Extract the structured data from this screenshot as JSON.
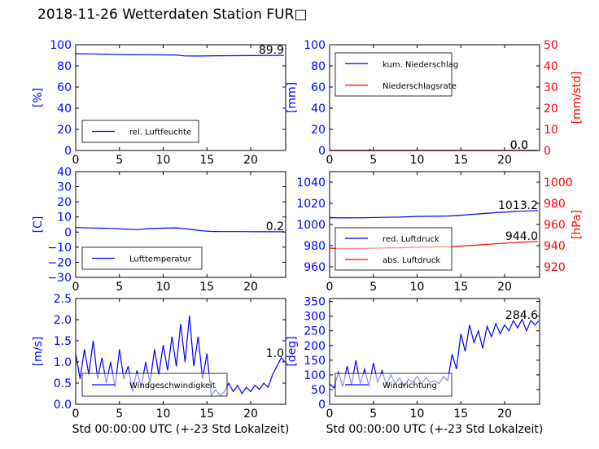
{
  "page": {
    "title": "2018-11-26 Wetterdaten Station FUR□"
  },
  "colors": {
    "blue": "#0000ff",
    "red": "#ff0000",
    "axis": "#000000"
  },
  "chart_data": [
    {
      "type": "line",
      "id": "humidity",
      "xlim": [
        0,
        24
      ],
      "ylim": [
        0,
        100
      ],
      "xticks": [
        0,
        5,
        10,
        15,
        20
      ],
      "yticks": [
        0,
        20,
        40,
        60,
        80,
        100
      ],
      "ylabel": "[%]",
      "xlabel": "",
      "legend": {
        "placement": "lower-left"
      },
      "series": [
        {
          "name": "rel. Luftfeuchte",
          "color": "#0000ff",
          "x": [
            0,
            2,
            4,
            6,
            8,
            10,
            11.5,
            12.5,
            14,
            16,
            18,
            20,
            22,
            23.8
          ],
          "y": [
            91.5,
            91.3,
            91.0,
            90.7,
            90.6,
            90.4,
            90.3,
            89.4,
            89.3,
            89.5,
            89.6,
            89.7,
            89.9,
            89.9
          ]
        }
      ],
      "last_value": "89.9"
    },
    {
      "type": "line",
      "id": "precipitation",
      "xlim": [
        0,
        24
      ],
      "ylim": [
        0,
        100
      ],
      "y2lim": [
        0,
        50
      ],
      "xticks": [
        0,
        5,
        10,
        15,
        20
      ],
      "yticks": [
        0,
        20,
        40,
        60,
        80,
        100
      ],
      "y2ticks": [
        0,
        10,
        20,
        30,
        40,
        50
      ],
      "ylabel": "[mm]",
      "y2label": "[mm/std]",
      "xlabel": "",
      "legend": {
        "placement": "upper-left"
      },
      "series": [
        {
          "name": "kum. Niederschlag",
          "color": "#0000ff",
          "axis": "left",
          "x": [
            0,
            5,
            10,
            15,
            20,
            23.8
          ],
          "y": [
            0,
            0,
            0,
            0,
            0,
            0
          ]
        },
        {
          "name": "Niederschlagsrate",
          "color": "#ff0000",
          "axis": "right",
          "x": [
            0,
            4.5,
            4.6,
            4.7,
            5,
            10,
            15,
            20,
            23.8
          ],
          "y": [
            0,
            0,
            0.6,
            0,
            0,
            0,
            0,
            0,
            0
          ]
        }
      ],
      "last_values": [
        "0.0",
        "0.0"
      ]
    },
    {
      "type": "line",
      "id": "temperature",
      "xlim": [
        0,
        24
      ],
      "ylim": [
        -30,
        40
      ],
      "xticks": [
        0,
        5,
        10,
        15,
        20
      ],
      "yticks": [
        -30,
        -20,
        -10,
        0,
        10,
        20,
        30,
        40
      ],
      "ylabel": "[C]",
      "xlabel": "",
      "legend": {
        "placement": "lower-left"
      },
      "series": [
        {
          "name": "Lufttemperatur",
          "color": "#0000ff",
          "x": [
            0,
            2,
            4,
            5.5,
            7,
            8.5,
            10,
            11.5,
            12.5,
            13.5,
            14.5,
            15.5,
            17,
            19,
            21,
            23.8
          ],
          "y": [
            3.0,
            2.7,
            2.4,
            2.0,
            1.6,
            2.3,
            2.6,
            2.8,
            2.2,
            1.5,
            0.8,
            0.4,
            0.3,
            0.3,
            0.2,
            0.2
          ]
        }
      ],
      "last_value": "0.2"
    },
    {
      "type": "line",
      "id": "pressure",
      "xlim": [
        0,
        24
      ],
      "ylim": [
        950,
        1050
      ],
      "y2lim": [
        910,
        1010
      ],
      "xticks": [
        0,
        5,
        10,
        15,
        20
      ],
      "yticks": [
        960,
        980,
        1000,
        1020,
        1040
      ],
      "y2ticks": [
        920,
        940,
        960,
        980,
        1000
      ],
      "ylabel": "",
      "y2label": "[hPa]",
      "xlabel": "",
      "legend": {
        "placement": "lower-left"
      },
      "series": [
        {
          "name": "red. Luftdruck",
          "color": "#0000ff",
          "axis": "left",
          "x": [
            0,
            2,
            4,
            6,
            8,
            10,
            12,
            13.5,
            15,
            17,
            19,
            21,
            23.8
          ],
          "y": [
            1006.5,
            1006.2,
            1006.4,
            1006.8,
            1007.0,
            1007.6,
            1007.8,
            1008.0,
            1008.8,
            1010.0,
            1011.2,
            1012.2,
            1013.2
          ]
        },
        {
          "name": "abs. Luftdruck",
          "color": "#ff0000",
          "axis": "right",
          "x": [
            0,
            2,
            4,
            6,
            8,
            10,
            12,
            13.5,
            15,
            17,
            19,
            21,
            23.8
          ],
          "y": [
            937.6,
            937.3,
            937.4,
            937.8,
            938.0,
            938.5,
            938.7,
            938.9,
            939.6,
            940.7,
            941.8,
            942.9,
            944.0
          ]
        }
      ],
      "last_values": [
        "1013.2",
        "944.0"
      ]
    },
    {
      "type": "line",
      "id": "windspeed",
      "xlim": [
        0,
        24
      ],
      "ylim": [
        0,
        2.5
      ],
      "xticks": [
        0,
        5,
        10,
        15,
        20
      ],
      "yticks": [
        0.0,
        0.5,
        1.0,
        1.5,
        2.0,
        2.5
      ],
      "ylabel": "[m/s]",
      "xlabel": "Std 00:00:00 UTC (+-23 Std Lokalzeit)",
      "legend": {
        "placement": "lower-left"
      },
      "series": [
        {
          "name": "Windgeschwindigkeit",
          "color": "#0000ff",
          "x": [
            0,
            0.5,
            1,
            1.5,
            2,
            2.5,
            3,
            3.5,
            4,
            4.5,
            5,
            5.5,
            6,
            6.5,
            7,
            7.5,
            8,
            8.5,
            9,
            9.5,
            10,
            10.5,
            11,
            11.5,
            12,
            12.5,
            13,
            13.5,
            14,
            14.5,
            15,
            15.5,
            16,
            16.5,
            17,
            17.5,
            18,
            18.5,
            19,
            19.5,
            20,
            20.5,
            21,
            21.5,
            22,
            22.5,
            23,
            23.5,
            23.9
          ],
          "y": [
            1.2,
            0.6,
            1.3,
            0.7,
            1.5,
            0.6,
            1.1,
            0.5,
            1.0,
            0.4,
            1.3,
            0.6,
            0.9,
            0.3,
            0.8,
            0.4,
            1.0,
            0.5,
            1.3,
            0.7,
            1.4,
            0.8,
            1.6,
            0.9,
            1.9,
            1.0,
            2.1,
            0.9,
            1.6,
            0.6,
            1.2,
            0.2,
            0.35,
            0.2,
            0.3,
            0.5,
            0.3,
            0.45,
            0.25,
            0.4,
            0.3,
            0.45,
            0.35,
            0.5,
            0.4,
            0.7,
            0.9,
            1.1,
            1.0
          ]
        }
      ],
      "last_value": "1.0"
    },
    {
      "type": "line",
      "id": "winddirection",
      "xlim": [
        0,
        24
      ],
      "ylim": [
        0,
        360
      ],
      "xticks": [
        0,
        5,
        10,
        15,
        20
      ],
      "yticks": [
        0,
        50,
        100,
        150,
        200,
        250,
        300,
        350
      ],
      "ylabel": "[deg]",
      "xlabel": "Std 00:00:00 UTC (+-23 Std Lokalzeit)",
      "legend": {
        "placement": "lower-left"
      },
      "series": [
        {
          "name": "Windrichtung",
          "color": "#0000ff",
          "x": [
            0,
            0.5,
            1,
            1.5,
            2,
            2.5,
            3,
            3.5,
            4,
            4.5,
            5,
            5.5,
            6,
            6.5,
            7,
            7.5,
            8,
            8.5,
            9,
            9.5,
            10,
            10.5,
            11,
            11.5,
            12,
            12.5,
            13,
            13.5,
            14,
            14.5,
            15,
            15.5,
            16,
            16.5,
            17,
            17.5,
            18,
            18.5,
            19,
            19.5,
            20,
            20.5,
            21,
            21.5,
            22,
            22.5,
            23,
            23.5,
            23.9
          ],
          "y": [
            70,
            55,
            110,
            60,
            130,
            65,
            150,
            70,
            120,
            60,
            140,
            75,
            115,
            65,
            100,
            70,
            90,
            60,
            85,
            75,
            95,
            70,
            90,
            75,
            80,
            70,
            95,
            80,
            170,
            120,
            240,
            180,
            270,
            210,
            250,
            190,
            265,
            230,
            275,
            240,
            270,
            250,
            285,
            260,
            290,
            250,
            285,
            270,
            284.6
          ]
        }
      ],
      "last_value": "284.6"
    }
  ]
}
